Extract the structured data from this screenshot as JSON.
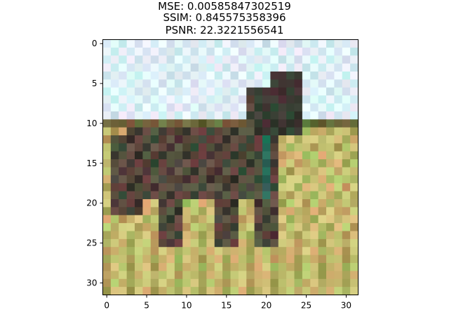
{
  "chart_data": {
    "type": "heatmap",
    "title_lines": [
      "MSE: 0.00585847302519",
      "SSIM: 0.845575358396",
      "PSNR: 22.3221556541"
    ],
    "image_size": [
      32,
      32
    ],
    "x_ticks": [
      "0",
      "5",
      "10",
      "15",
      "20",
      "25",
      "30"
    ],
    "y_ticks": [
      "0",
      "5",
      "10",
      "15",
      "20",
      "25",
      "30"
    ],
    "x_range": [
      -0.5,
      31.5
    ],
    "y_range": [
      31.5,
      -0.5
    ],
    "grid": false,
    "image_description_colors": {
      "sky": "#cfe6f0",
      "sky_light": "#e9f4f8",
      "horse_dark": "#3c3a33",
      "horse_mid": "#5d4e3f",
      "grass_light": "#cbbf74",
      "grass_mid": "#aaa55b",
      "grass_dark": "#6b6a3c",
      "teal_accent": "#2a6a5a"
    }
  }
}
